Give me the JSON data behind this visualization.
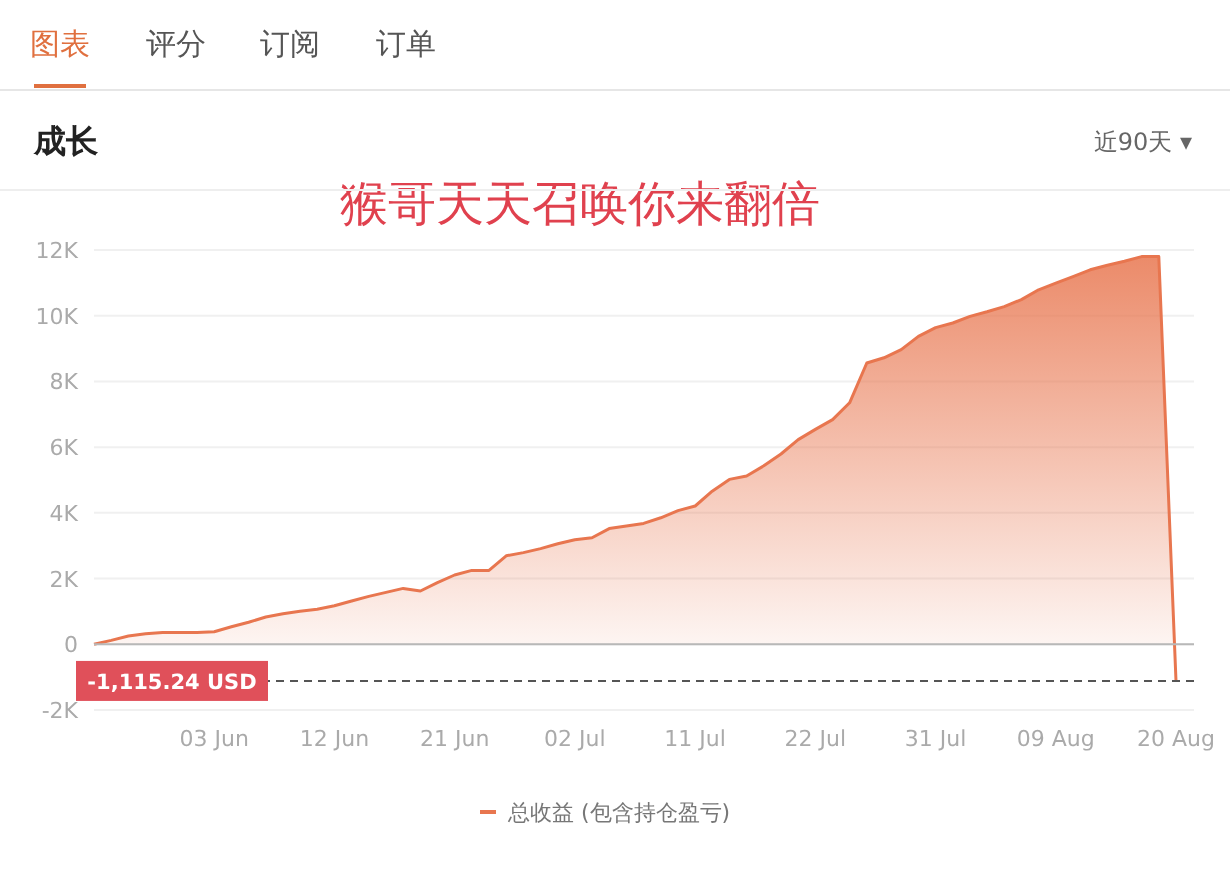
{
  "chart_data": {
    "type": "area",
    "title": "成长",
    "annotations": [
      "图表",
      "评分",
      "订阅",
      "订单",
      "近90天 ▾",
      "猴哥天天召唤你来翻倍"
    ],
    "categories": [
      null,
      null,
      null,
      null,
      null,
      null,
      null,
      "03 Jun",
      null,
      null,
      null,
      null,
      null,
      null,
      "12 Jun",
      null,
      null,
      null,
      null,
      null,
      null,
      "21 Jun",
      null,
      null,
      null,
      null,
      null,
      null,
      "02 Jul",
      null,
      null,
      null,
      null,
      null,
      null,
      "11 Jul",
      null,
      null,
      null,
      null,
      null,
      null,
      "22 Jul",
      null,
      null,
      null,
      null,
      null,
      null,
      "31 Jul",
      null,
      null,
      null,
      null,
      null,
      null,
      "09 Aug",
      null,
      null,
      null,
      null,
      null,
      null,
      "20 Aug"
    ],
    "series": [
      {
        "name": "总收益 (包含持仓盈亏)",
        "color": "#e8764f",
        "values": [
          0,
          120,
          250,
          320,
          360,
          360,
          360,
          380,
          530,
          670,
          830,
          930,
          1010,
          1070,
          1170,
          1320,
          1460,
          1580,
          1700,
          1620,
          1880,
          2110,
          2250,
          2250,
          2690,
          2790,
          2910,
          3060,
          3180,
          3240,
          3520,
          3600,
          3680,
          3850,
          4070,
          4210,
          4660,
          5020,
          5120,
          5430,
          5790,
          6230,
          6540,
          6840,
          7350,
          8560,
          8720,
          8970,
          9370,
          9640,
          9780,
          9980,
          10120,
          10280,
          10490,
          10790,
          10990,
          11190,
          11400,
          11540,
          11660,
          11800,
          11800,
          -1115.24
        ]
      }
    ],
    "ylim": [
      -2000,
      12000
    ],
    "yticks": [
      {
        "value": -2000,
        "label": "-2K"
      },
      0,
      {
        "value": 2000,
        "label": "2K"
      },
      {
        "value": 4000,
        "label": "4K"
      },
      {
        "value": 6000,
        "label": "6K"
      },
      {
        "value": 8000,
        "label": "8K"
      },
      {
        "value": 10000,
        "label": "10K"
      },
      {
        "value": 12000,
        "label": "12K"
      }
    ],
    "ref_lines": [
      {
        "axis": "y",
        "value": 0,
        "color": "#b8b8b8",
        "line_style": "solid"
      },
      {
        "axis": "y",
        "value": -1115.24,
        "label": "-1,115.24 USD",
        "color": "#555555",
        "line_style": "dashed"
      }
    ],
    "grid": "y",
    "legend": "bottom",
    "marker": "none",
    "line_style": "solid"
  }
}
